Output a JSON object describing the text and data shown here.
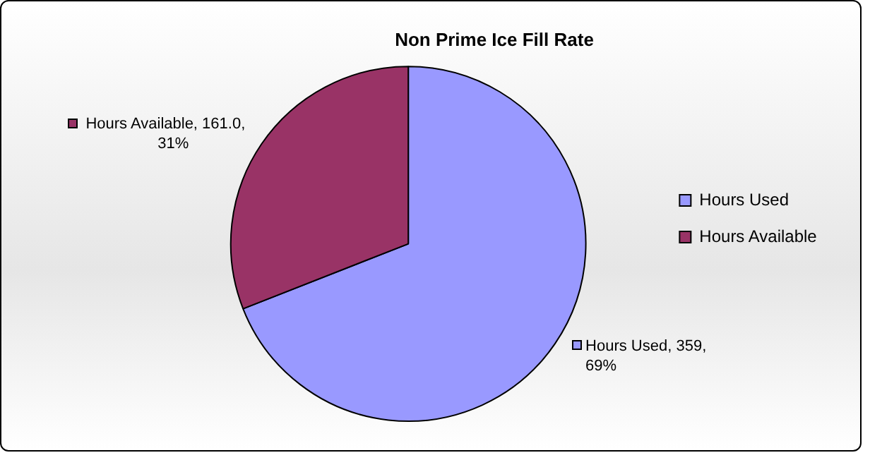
{
  "chart_data": {
    "type": "pie",
    "title": "Non Prime Ice Fill Rate",
    "categories": [
      "Hours Used",
      "Hours Available"
    ],
    "values": [
      359,
      161.0
    ],
    "colors": [
      "#9999ff",
      "#993366"
    ],
    "value_labels": [
      "Hours Used, 359, 69%",
      "Hours Available, 161.0, 31%"
    ],
    "legend": "right"
  }
}
